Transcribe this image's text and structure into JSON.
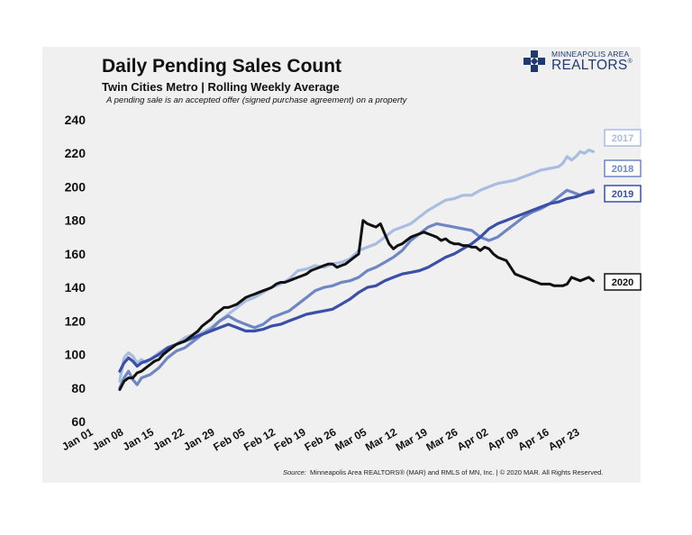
{
  "header": {
    "title": "Daily Pending Sales Count",
    "subtitle": "Twin Cities Metro  |  Rolling Weekly Average",
    "note": "A pending sale is an accepted offer (signed purchase agreement) on a property"
  },
  "logo": {
    "line1": "MINNEAPOLIS AREA",
    "line2": "REALTORS",
    "icon": "realtors-cross-logo"
  },
  "footer": {
    "source_label": "Source:",
    "source_text": "Minneapolis Area REALTORS® (MAR) and RMLS of MN, Inc.  |  © 2020 MAR. All Rights Reserved."
  },
  "chart_data": {
    "type": "line",
    "xlabel": "",
    "ylabel": "",
    "ylim": [
      60,
      240
    ],
    "yticks": [
      60,
      80,
      100,
      120,
      140,
      160,
      180,
      200,
      220,
      240
    ],
    "xlim": [
      1,
      118
    ],
    "xticks": [
      {
        "day": 1,
        "label": "Jan 01"
      },
      {
        "day": 8,
        "label": "Jan 08"
      },
      {
        "day": 15,
        "label": "Jan 15"
      },
      {
        "day": 22,
        "label": "Jan 22"
      },
      {
        "day": 29,
        "label": "Jan 29"
      },
      {
        "day": 36,
        "label": "Feb 05"
      },
      {
        "day": 43,
        "label": "Feb 12"
      },
      {
        "day": 50,
        "label": "Feb 19"
      },
      {
        "day": 57,
        "label": "Feb 26"
      },
      {
        "day": 64,
        "label": "Mar 05"
      },
      {
        "day": 71,
        "label": "Mar 12"
      },
      {
        "day": 78,
        "label": "Mar 19"
      },
      {
        "day": 85,
        "label": "Mar 26"
      },
      {
        "day": 92,
        "label": "Apr 02"
      },
      {
        "day": 99,
        "label": "Apr 09"
      },
      {
        "day": 106,
        "label": "Apr 16"
      },
      {
        "day": 113,
        "label": "Apr 23"
      }
    ],
    "grid": false,
    "series": [
      {
        "name": "2017",
        "color": "#a9bde0",
        "label_box": "#a9bde0",
        "points": [
          [
            7,
            84
          ],
          [
            8,
            98
          ],
          [
            9,
            101
          ],
          [
            10,
            99
          ],
          [
            11,
            95
          ],
          [
            12,
            97
          ],
          [
            13,
            95
          ],
          [
            14,
            97
          ],
          [
            15,
            99
          ],
          [
            16,
            101
          ],
          [
            18,
            104
          ],
          [
            20,
            106
          ],
          [
            22,
            110
          ],
          [
            24,
            112
          ],
          [
            26,
            113
          ],
          [
            28,
            116
          ],
          [
            30,
            120
          ],
          [
            32,
            124
          ],
          [
            34,
            128
          ],
          [
            36,
            132
          ],
          [
            38,
            134
          ],
          [
            40,
            137
          ],
          [
            42,
            140
          ],
          [
            44,
            142
          ],
          [
            46,
            145
          ],
          [
            48,
            150
          ],
          [
            50,
            151
          ],
          [
            52,
            153
          ],
          [
            54,
            152
          ],
          [
            56,
            154
          ],
          [
            58,
            155
          ],
          [
            60,
            157
          ],
          [
            62,
            162
          ],
          [
            64,
            164
          ],
          [
            66,
            166
          ],
          [
            68,
            170
          ],
          [
            70,
            174
          ],
          [
            72,
            176
          ],
          [
            74,
            178
          ],
          [
            76,
            182
          ],
          [
            78,
            186
          ],
          [
            80,
            189
          ],
          [
            82,
            192
          ],
          [
            84,
            193
          ],
          [
            86,
            195
          ],
          [
            88,
            195
          ],
          [
            90,
            198
          ],
          [
            92,
            200
          ],
          [
            94,
            202
          ],
          [
            96,
            203
          ],
          [
            98,
            204
          ],
          [
            100,
            206
          ],
          [
            102,
            208
          ],
          [
            104,
            210
          ],
          [
            106,
            211
          ],
          [
            108,
            212
          ],
          [
            109,
            214
          ],
          [
            110,
            218
          ],
          [
            111,
            216
          ],
          [
            112,
            218
          ],
          [
            113,
            221
          ],
          [
            114,
            220
          ],
          [
            115,
            222
          ],
          [
            116,
            221
          ]
        ]
      },
      {
        "name": "2018",
        "color": "#6f86c4",
        "label_box": "#6f86c4",
        "points": [
          [
            7,
            80
          ],
          [
            8,
            86
          ],
          [
            9,
            90
          ],
          [
            10,
            85
          ],
          [
            11,
            82
          ],
          [
            12,
            86
          ],
          [
            14,
            88
          ],
          [
            16,
            92
          ],
          [
            18,
            98
          ],
          [
            20,
            102
          ],
          [
            22,
            104
          ],
          [
            24,
            108
          ],
          [
            26,
            112
          ],
          [
            28,
            115
          ],
          [
            30,
            120
          ],
          [
            32,
            123
          ],
          [
            34,
            120
          ],
          [
            36,
            118
          ],
          [
            38,
            116
          ],
          [
            40,
            118
          ],
          [
            42,
            122
          ],
          [
            44,
            124
          ],
          [
            46,
            126
          ],
          [
            48,
            130
          ],
          [
            50,
            134
          ],
          [
            52,
            138
          ],
          [
            54,
            140
          ],
          [
            56,
            141
          ],
          [
            58,
            143
          ],
          [
            60,
            144
          ],
          [
            62,
            146
          ],
          [
            64,
            150
          ],
          [
            66,
            152
          ],
          [
            68,
            155
          ],
          [
            70,
            158
          ],
          [
            72,
            162
          ],
          [
            74,
            168
          ],
          [
            76,
            172
          ],
          [
            78,
            176
          ],
          [
            80,
            178
          ],
          [
            82,
            177
          ],
          [
            84,
            176
          ],
          [
            86,
            175
          ],
          [
            88,
            174
          ],
          [
            90,
            170
          ],
          [
            92,
            168
          ],
          [
            94,
            170
          ],
          [
            96,
            174
          ],
          [
            98,
            178
          ],
          [
            100,
            182
          ],
          [
            102,
            185
          ],
          [
            104,
            187
          ],
          [
            106,
            190
          ],
          [
            108,
            194
          ],
          [
            110,
            198
          ],
          [
            111,
            197
          ],
          [
            112,
            196
          ],
          [
            113,
            195
          ],
          [
            114,
            196
          ],
          [
            115,
            197
          ],
          [
            116,
            198
          ]
        ]
      },
      {
        "name": "2019",
        "color": "#3a4fa6",
        "label_box": "#3a4fa6",
        "points": [
          [
            7,
            90
          ],
          [
            8,
            95
          ],
          [
            9,
            98
          ],
          [
            10,
            96
          ],
          [
            11,
            93
          ],
          [
            12,
            95
          ],
          [
            14,
            97
          ],
          [
            16,
            100
          ],
          [
            18,
            104
          ],
          [
            20,
            106
          ],
          [
            22,
            108
          ],
          [
            24,
            110
          ],
          [
            26,
            112
          ],
          [
            28,
            114
          ],
          [
            30,
            116
          ],
          [
            32,
            118
          ],
          [
            34,
            116
          ],
          [
            36,
            114
          ],
          [
            38,
            114
          ],
          [
            40,
            115
          ],
          [
            42,
            117
          ],
          [
            44,
            118
          ],
          [
            46,
            120
          ],
          [
            48,
            122
          ],
          [
            50,
            124
          ],
          [
            52,
            125
          ],
          [
            54,
            126
          ],
          [
            56,
            127
          ],
          [
            58,
            130
          ],
          [
            60,
            133
          ],
          [
            62,
            137
          ],
          [
            64,
            140
          ],
          [
            66,
            141
          ],
          [
            68,
            144
          ],
          [
            70,
            146
          ],
          [
            72,
            148
          ],
          [
            74,
            149
          ],
          [
            76,
            150
          ],
          [
            78,
            152
          ],
          [
            80,
            155
          ],
          [
            82,
            158
          ],
          [
            84,
            160
          ],
          [
            86,
            163
          ],
          [
            88,
            166
          ],
          [
            90,
            170
          ],
          [
            92,
            175
          ],
          [
            94,
            178
          ],
          [
            96,
            180
          ],
          [
            98,
            182
          ],
          [
            100,
            184
          ],
          [
            102,
            186
          ],
          [
            104,
            188
          ],
          [
            106,
            190
          ],
          [
            108,
            191
          ],
          [
            110,
            193
          ],
          [
            112,
            194
          ],
          [
            114,
            196
          ],
          [
            116,
            197
          ]
        ]
      },
      {
        "name": "2020",
        "color": "#111111",
        "label_box": "#111111",
        "points": [
          [
            7,
            79
          ],
          [
            8,
            84
          ],
          [
            9,
            86
          ],
          [
            10,
            86
          ],
          [
            11,
            89
          ],
          [
            12,
            90
          ],
          [
            13,
            92
          ],
          [
            14,
            94
          ],
          [
            15,
            96
          ],
          [
            16,
            97
          ],
          [
            17,
            100
          ],
          [
            18,
            102
          ],
          [
            19,
            104
          ],
          [
            20,
            106
          ],
          [
            21,
            107
          ],
          [
            22,
            108
          ],
          [
            23,
            110
          ],
          [
            24,
            112
          ],
          [
            25,
            114
          ],
          [
            26,
            117
          ],
          [
            27,
            119
          ],
          [
            28,
            121
          ],
          [
            29,
            124
          ],
          [
            30,
            126
          ],
          [
            31,
            128
          ],
          [
            32,
            128
          ],
          [
            33,
            129
          ],
          [
            34,
            130
          ],
          [
            35,
            132
          ],
          [
            36,
            134
          ],
          [
            37,
            135
          ],
          [
            38,
            136
          ],
          [
            39,
            137
          ],
          [
            40,
            138
          ],
          [
            41,
            139
          ],
          [
            42,
            140
          ],
          [
            43,
            142
          ],
          [
            44,
            143
          ],
          [
            45,
            143
          ],
          [
            46,
            144
          ],
          [
            47,
            145
          ],
          [
            48,
            146
          ],
          [
            49,
            147
          ],
          [
            50,
            148
          ],
          [
            51,
            150
          ],
          [
            52,
            151
          ],
          [
            53,
            152
          ],
          [
            54,
            153
          ],
          [
            55,
            154
          ],
          [
            56,
            154
          ],
          [
            57,
            152
          ],
          [
            58,
            153
          ],
          [
            59,
            154
          ],
          [
            60,
            156
          ],
          [
            61,
            158
          ],
          [
            62,
            160
          ],
          [
            63,
            180
          ],
          [
            64,
            178
          ],
          [
            65,
            177
          ],
          [
            66,
            176
          ],
          [
            67,
            178
          ],
          [
            68,
            172
          ],
          [
            69,
            166
          ],
          [
            70,
            163
          ],
          [
            71,
            165
          ],
          [
            72,
            166
          ],
          [
            73,
            168
          ],
          [
            74,
            170
          ],
          [
            75,
            171
          ],
          [
            76,
            172
          ],
          [
            77,
            173
          ],
          [
            78,
            172
          ],
          [
            79,
            171
          ],
          [
            80,
            170
          ],
          [
            81,
            168
          ],
          [
            82,
            169
          ],
          [
            83,
            167
          ],
          [
            84,
            166
          ],
          [
            85,
            166
          ],
          [
            86,
            165
          ],
          [
            87,
            165
          ],
          [
            88,
            164
          ],
          [
            89,
            164
          ],
          [
            90,
            162
          ],
          [
            91,
            164
          ],
          [
            92,
            163
          ],
          [
            93,
            160
          ],
          [
            94,
            158
          ],
          [
            95,
            157
          ],
          [
            96,
            156
          ],
          [
            97,
            152
          ],
          [
            98,
            148
          ],
          [
            99,
            147
          ],
          [
            100,
            146
          ],
          [
            101,
            145
          ],
          [
            102,
            144
          ],
          [
            103,
            143
          ],
          [
            104,
            142
          ],
          [
            105,
            142
          ],
          [
            106,
            142
          ],
          [
            107,
            141
          ],
          [
            108,
            141
          ],
          [
            109,
            141
          ],
          [
            110,
            142
          ],
          [
            111,
            146
          ],
          [
            112,
            145
          ],
          [
            113,
            144
          ],
          [
            114,
            145
          ],
          [
            115,
            146
          ],
          [
            116,
            144
          ]
        ]
      }
    ]
  }
}
